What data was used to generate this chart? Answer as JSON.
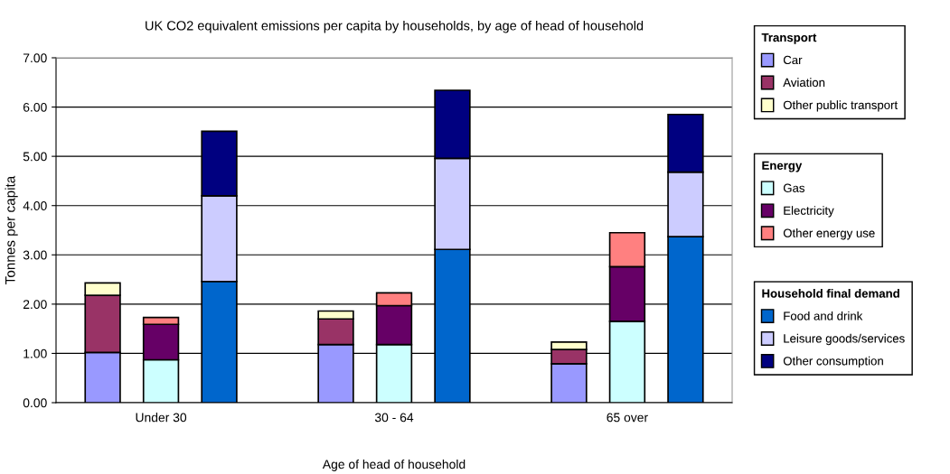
{
  "chart_data": {
    "type": "bar",
    "title": "UK CO2 equivalent emissions per capita by households, by age of head of household",
    "xlabel": "Age of head of household",
    "ylabel": "Tonnes per capita",
    "categories": [
      null,
      "Under 30",
      null,
      null,
      null,
      "30 - 64",
      null,
      null,
      null,
      "65 over",
      null
    ],
    "stacked": true,
    "legend_title": [
      "Transport",
      "Energy",
      "Household final demand"
    ],
    "series": [
      {
        "name": "Car",
        "color": "#9999ff",
        "values": [
          1.02,
          null,
          null,
          null,
          1.18,
          null,
          null,
          null,
          0.79,
          null,
          null
        ]
      },
      {
        "name": "Aviation",
        "color": "#993366",
        "values": [
          1.16,
          null,
          null,
          null,
          0.52,
          null,
          null,
          null,
          0.29,
          null,
          null
        ]
      },
      {
        "name": "Other public transport",
        "color": "#ffffcc",
        "values": [
          0.25,
          null,
          null,
          null,
          0.16,
          null,
          null,
          null,
          0.15,
          null,
          null
        ]
      },
      {
        "name": "Gas",
        "color": "#ccffff",
        "values": [
          null,
          0.87,
          null,
          null,
          null,
          1.18,
          null,
          null,
          null,
          1.65,
          null
        ]
      },
      {
        "name": "Electricity",
        "color": "#660066",
        "values": [
          null,
          0.72,
          null,
          null,
          null,
          0.79,
          null,
          null,
          null,
          1.11,
          null
        ]
      },
      {
        "name": "Other energy use",
        "color": "#ff8080",
        "values": [
          null,
          0.14,
          null,
          null,
          null,
          0.26,
          null,
          null,
          null,
          0.69,
          null
        ]
      },
      {
        "name": "Food and drink",
        "color": "#0066cc",
        "values": [
          null,
          null,
          2.46,
          null,
          null,
          null,
          3.11,
          null,
          null,
          null,
          3.37
        ]
      },
      {
        "name": "Leisure goods/services",
        "color": "#ccccff",
        "values": [
          null,
          null,
          1.74,
          null,
          null,
          null,
          1.85,
          null,
          null,
          null,
          1.31
        ]
      },
      {
        "name": "Other consumption",
        "color": "#000080",
        "values": [
          null,
          null,
          1.31,
          null,
          null,
          null,
          1.38,
          null,
          null,
          null,
          1.17
        ]
      }
    ],
    "ylim": [
      0,
      7
    ],
    "yticks": [
      {
        "value": 0,
        "label": "0.00"
      },
      {
        "value": 1,
        "label": "1.00"
      },
      {
        "value": 2,
        "label": "2.00"
      },
      {
        "value": 3,
        "label": "3.00"
      },
      {
        "value": 4,
        "label": "4.00"
      },
      {
        "value": 5,
        "label": "5.00"
      },
      {
        "value": 6,
        "label": "6.00"
      },
      {
        "value": 7,
        "label": "7.00"
      }
    ],
    "grid": "y",
    "legend": "right"
  }
}
